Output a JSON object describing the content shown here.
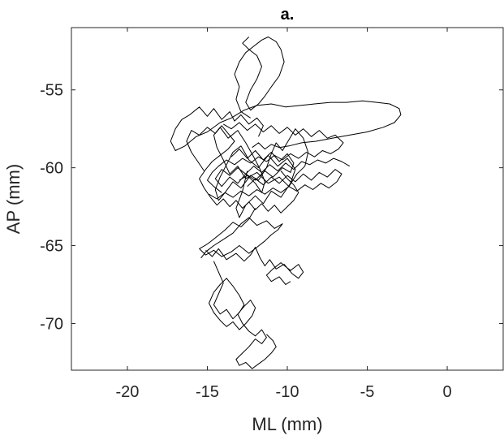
{
  "chart_data": {
    "type": "line",
    "title": "a.",
    "xlabel": "ML (mm)",
    "ylabel": "AP (mm)",
    "xlim": [
      -23.5,
      3.5
    ],
    "ylim": [
      -73,
      -51
    ],
    "xticks": [
      -20,
      -15,
      -10,
      -5,
      0
    ],
    "xtick_labels": [
      "-20",
      "-15",
      "-10",
      "-5",
      "0"
    ],
    "yticks": [
      -55,
      -60,
      -65,
      -70
    ],
    "ytick_labels": [
      "-55",
      "-60",
      "-65",
      "-70"
    ],
    "grid": false,
    "box": true,
    "series": [
      {
        "color": "#000000",
        "x": [
          -12.5,
          -12.8,
          -13.2,
          -13.0,
          -12.6,
          -12.0,
          -11.5,
          -11.0,
          -10.4,
          -9.8,
          -9.5,
          -10.0,
          -10.6,
          -11.2,
          -11.8,
          -12.4,
          -12.9,
          -13.4,
          -13.8,
          -14.2,
          -14.5,
          -14.3,
          -13.9,
          -13.4,
          -12.9,
          -12.3,
          -11.8,
          -11.3,
          -11.0,
          -10.7,
          -10.3,
          -9.9,
          -9.5,
          -9.0,
          -8.7,
          -8.9,
          -9.4,
          -9.9,
          -10.5,
          -11.2,
          -11.9,
          -12.6,
          -13.1,
          -13.6,
          -14.0,
          -14.4,
          -14.6,
          -14.2,
          -13.7,
          -13.1,
          -12.6,
          -12.1,
          -11.7,
          -11.4,
          -11.6,
          -12.0,
          -12.5,
          -13.0
        ],
        "y": [
          -60.2,
          -61.5,
          -62.6,
          -63.2,
          -62.4,
          -61.8,
          -62.3,
          -61.5,
          -61.9,
          -61.0,
          -60.1,
          -59.4,
          -59.9,
          -59.2,
          -60.0,
          -59.5,
          -58.6,
          -59.0,
          -59.8,
          -60.6,
          -61.4,
          -62.1,
          -61.6,
          -60.9,
          -61.3,
          -60.5,
          -60.8,
          -60.0,
          -59.1,
          -58.4,
          -58.9,
          -58.2,
          -57.5,
          -58.1,
          -59.0,
          -59.9,
          -60.4,
          -61.2,
          -60.6,
          -61.0,
          -60.3,
          -60.7,
          -59.9,
          -60.4,
          -59.5,
          -58.7,
          -57.9,
          -57.4,
          -58.1,
          -57.6,
          -58.4,
          -59.3,
          -60.1,
          -60.9,
          -61.6,
          -61.0,
          -60.5,
          -60.8
        ]
      },
      {
        "color": "#000000",
        "x": [
          -11.8,
          -11.5,
          -11.9,
          -12.4,
          -12.9,
          -13.3,
          -13.6,
          -14.1,
          -14.6,
          -15.0,
          -15.5,
          -16.1,
          -16.6,
          -17.0,
          -17.3,
          -17.0,
          -16.4,
          -15.7,
          -15.0,
          -14.2,
          -13.5,
          -12.7,
          -11.9,
          -11.0,
          -10.1,
          -9.2,
          -8.3,
          -7.3,
          -6.3,
          -5.3,
          -4.4,
          -3.6,
          -3.0,
          -2.9,
          -3.3,
          -4.0,
          -5.0,
          -6.1,
          -7.2,
          -8.2,
          -9.1,
          -9.9,
          -10.5,
          -11.0,
          -11.4,
          -11.8,
          -12.2
        ],
        "y": [
          -58.0,
          -57.3,
          -56.8,
          -57.2,
          -56.6,
          -57.0,
          -56.4,
          -56.9,
          -56.2,
          -56.7,
          -56.1,
          -56.6,
          -56.9,
          -57.5,
          -58.3,
          -58.9,
          -58.6,
          -58.0,
          -57.7,
          -57.1,
          -56.8,
          -56.3,
          -56.0,
          -55.9,
          -56.1,
          -56.0,
          -55.9,
          -55.8,
          -55.8,
          -55.7,
          -55.8,
          -55.9,
          -56.2,
          -56.6,
          -57.1,
          -57.4,
          -57.7,
          -57.9,
          -58.1,
          -58.3,
          -58.4,
          -58.6,
          -58.7,
          -58.5,
          -58.8,
          -58.4,
          -58.7
        ]
      },
      {
        "color": "#000000",
        "x": [
          -12.3,
          -12.9,
          -13.2,
          -13.0,
          -13.3,
          -13.0,
          -12.6,
          -12.1,
          -11.6,
          -11.2,
          -10.7,
          -10.4,
          -10.2,
          -10.5,
          -11.0,
          -11.4,
          -11.8,
          -12.3,
          -12.6,
          -12.3,
          -11.9,
          -11.6,
          -11.9,
          -12.4,
          -12.8,
          -12.4
        ],
        "y": [
          -56.8,
          -56.4,
          -55.6,
          -54.8,
          -54.0,
          -53.2,
          -52.6,
          -52.2,
          -51.8,
          -51.6,
          -51.9,
          -52.4,
          -53.2,
          -54.1,
          -54.8,
          -55.4,
          -55.9,
          -56.3,
          -55.8,
          -55.0,
          -54.3,
          -53.5,
          -52.8,
          -52.4,
          -52.0,
          -51.6
        ]
      },
      {
        "color": "#000000",
        "x": [
          -12.0,
          -12.4,
          -12.9,
          -13.4,
          -13.9,
          -14.5,
          -15.0,
          -15.5,
          -15.1,
          -14.6,
          -14.1,
          -13.5,
          -13.0,
          -12.4,
          -11.9,
          -11.4,
          -11.0,
          -10.6,
          -10.3,
          -10.8,
          -11.3,
          -11.9,
          -12.4,
          -12.9,
          -13.4,
          -14.0,
          -14.6,
          -15.1,
          -15.4
        ],
        "y": [
          -62.6,
          -63.3,
          -63.8,
          -63.5,
          -64.0,
          -64.5,
          -64.9,
          -65.2,
          -65.6,
          -65.3,
          -65.7,
          -65.4,
          -65.0,
          -65.5,
          -65.1,
          -64.7,
          -64.3,
          -64.0,
          -63.6,
          -63.9,
          -63.4,
          -63.7,
          -63.2,
          -63.6,
          -64.2,
          -64.6,
          -65.0,
          -65.4,
          -65.8
        ]
      },
      {
        "color": "#000000",
        "x": [
          -15.1,
          -14.7,
          -14.3,
          -13.8,
          -13.2,
          -12.7,
          -12.3,
          -12.0,
          -11.7,
          -11.4,
          -11.1,
          -10.7,
          -10.2,
          -9.7,
          -9.3,
          -9.0,
          -9.3,
          -9.8,
          -10.4,
          -10.9,
          -11.3,
          -11.0,
          -10.5,
          -10.1,
          -9.8
        ],
        "y": [
          -65.3,
          -65.7,
          -65.2,
          -65.9,
          -65.5,
          -66.0,
          -65.6,
          -65.1,
          -65.8,
          -66.3,
          -65.9,
          -66.5,
          -66.2,
          -66.8,
          -67.1,
          -66.7,
          -66.2,
          -66.6,
          -66.1,
          -66.5,
          -66.9,
          -67.3,
          -67.0,
          -67.5,
          -67.3
        ]
      },
      {
        "color": "#000000",
        "x": [
          -14.6,
          -14.3,
          -14.0,
          -14.3,
          -14.6,
          -14.2,
          -13.8,
          -13.4,
          -13.0,
          -12.7,
          -13.0,
          -13.4,
          -13.8,
          -14.2,
          -14.6,
          -14.9,
          -14.6,
          -14.2,
          -13.8,
          -13.4,
          -13.0,
          -12.6,
          -12.2,
          -12.0,
          -12.3,
          -12.7,
          -13.1,
          -12.8,
          -12.4,
          -12.0,
          -11.6,
          -11.3,
          -11.6,
          -12.0,
          -12.4,
          -12.8,
          -13.2,
          -13.0,
          -12.6,
          -12.2,
          -11.8,
          -11.4,
          -11.0,
          -10.7,
          -10.9,
          -11.3
        ],
        "y": [
          -66.0,
          -66.7,
          -67.4,
          -68.1,
          -68.8,
          -69.4,
          -69.1,
          -69.7,
          -69.3,
          -68.8,
          -68.2,
          -67.6,
          -67.1,
          -67.5,
          -68.0,
          -68.7,
          -69.3,
          -69.8,
          -70.2,
          -69.9,
          -70.4,
          -70.0,
          -69.5,
          -69.0,
          -68.5,
          -68.9,
          -69.4,
          -70.0,
          -70.5,
          -70.8,
          -70.4,
          -70.9,
          -71.3,
          -71.0,
          -71.5,
          -71.9,
          -72.3,
          -72.7,
          -72.5,
          -72.9,
          -72.6,
          -72.3,
          -71.9,
          -71.5,
          -71.1,
          -70.7
        ]
      },
      {
        "color": "#000000",
        "x": [
          -13.5,
          -13.0,
          -12.5,
          -12.0,
          -11.5,
          -11.0,
          -10.5,
          -10.0,
          -9.6,
          -9.8,
          -10.3,
          -10.9,
          -11.4,
          -12.0,
          -12.6,
          -13.1,
          -13.6,
          -14.1,
          -14.5,
          -14.1,
          -13.6,
          -13.1,
          -12.6,
          -12.1,
          -11.6,
          -11.1,
          -10.6,
          -10.1,
          -9.6,
          -9.1,
          -8.6,
          -8.1,
          -7.6,
          -7.1,
          -6.6,
          -6.1
        ],
        "y": [
          -59.3,
          -58.8,
          -59.4,
          -58.9,
          -59.5,
          -59.0,
          -59.6,
          -59.1,
          -59.7,
          -60.3,
          -60.0,
          -60.6,
          -60.2,
          -60.8,
          -60.4,
          -61.0,
          -60.6,
          -61.2,
          -60.7,
          -60.1,
          -60.5,
          -60.0,
          -60.4,
          -59.9,
          -60.3,
          -59.8,
          -60.2,
          -59.7,
          -60.1,
          -59.6,
          -59.8,
          -59.5,
          -59.7,
          -59.4,
          -59.6,
          -59.9
        ]
      },
      {
        "color": "#000000",
        "x": [
          -14.0,
          -13.5,
          -13.0,
          -12.5,
          -12.0,
          -11.5,
          -11.0,
          -10.5,
          -10.0,
          -9.5,
          -9.0,
          -8.5,
          -8.0,
          -7.5,
          -7.0,
          -6.5,
          -6.8,
          -7.3,
          -7.8,
          -8.3,
          -8.8,
          -9.3,
          -9.8,
          -10.3,
          -10.8,
          -11.3,
          -11.8,
          -12.3,
          -12.8,
          -13.3,
          -13.8,
          -14.3,
          -14.7,
          -15.0,
          -14.6,
          -14.1
        ],
        "y": [
          -57.2,
          -57.5,
          -57.1,
          -57.6,
          -57.2,
          -57.7,
          -57.3,
          -57.8,
          -57.4,
          -57.9,
          -57.5,
          -58.0,
          -57.6,
          -58.1,
          -57.9,
          -58.4,
          -58.8,
          -59.1,
          -58.9,
          -59.3,
          -59.0,
          -59.4,
          -59.1,
          -59.5,
          -59.2,
          -59.6,
          -59.3,
          -59.7,
          -59.4,
          -59.8,
          -59.5,
          -59.9,
          -60.3,
          -60.8,
          -61.2,
          -61.6
        ]
      },
      {
        "color": "#000000",
        "x": [
          -15.2,
          -15.6,
          -16.0,
          -16.3,
          -16.0,
          -15.5,
          -15.0,
          -14.5,
          -14.1,
          -13.7,
          -13.3,
          -13.7,
          -14.2,
          -14.7,
          -15.1,
          -15.5,
          -15.2,
          -14.8,
          -14.4,
          -14.0,
          -13.6,
          -13.2,
          -12.8,
          -12.4,
          -12.0,
          -11.6,
          -11.2,
          -10.8,
          -10.4,
          -10.0,
          -9.6,
          -9.3,
          -9.6,
          -10.0,
          -10.4
        ],
        "y": [
          -60.2,
          -59.6,
          -59.0,
          -58.3,
          -57.6,
          -57.9,
          -57.4,
          -57.8,
          -57.3,
          -57.8,
          -58.3,
          -58.8,
          -59.2,
          -59.6,
          -60.1,
          -60.7,
          -61.3,
          -61.9,
          -62.4,
          -62.0,
          -62.5,
          -62.1,
          -62.6,
          -62.2,
          -62.7,
          -62.3,
          -62.8,
          -62.4,
          -62.9,
          -62.5,
          -62.1,
          -61.6,
          -61.1,
          -60.7,
          -60.2
        ]
      },
      {
        "color": "#000000",
        "x": [
          -12.5,
          -12.0,
          -11.5,
          -11.0,
          -10.5,
          -10.0,
          -9.5,
          -9.0,
          -8.5,
          -8.0,
          -7.5,
          -7.0,
          -6.6,
          -6.9,
          -7.4,
          -7.9,
          -8.4,
          -8.9,
          -9.4,
          -9.9,
          -10.4,
          -10.9,
          -11.4,
          -11.9,
          -12.4,
          -12.9,
          -13.4,
          -13.9,
          -14.4,
          -14.9
        ],
        "y": [
          -61.2,
          -60.7,
          -61.1,
          -60.6,
          -61.0,
          -60.5,
          -60.9,
          -60.4,
          -60.8,
          -60.3,
          -60.6,
          -60.1,
          -60.4,
          -60.9,
          -61.3,
          -61.0,
          -61.4,
          -61.1,
          -61.5,
          -61.2,
          -61.6,
          -61.3,
          -61.7,
          -61.4,
          -61.8,
          -61.5,
          -61.9,
          -61.6,
          -62.0,
          -61.7
        ]
      }
    ]
  }
}
